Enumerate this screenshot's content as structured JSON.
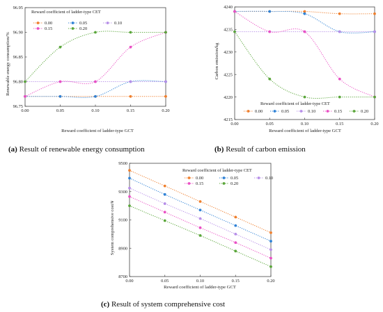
{
  "colors": {
    "0.00": "#ef7f2d",
    "0.05": "#2f82d6",
    "0.10": "#b68ee8",
    "0.15": "#ea4fc4",
    "0.20": "#5aa63a"
  },
  "legend_title": "Reward coefficient of ladder-type CET",
  "captions": [
    {
      "label": "(a)",
      "text": " Result of renewable energy consumption"
    },
    {
      "label": "(b)",
      "text": " Result of carbon emission"
    },
    {
      "label": "(c)",
      "text": " Result of system comprehensive cost"
    }
  ],
  "chart_data": [
    {
      "type": "line",
      "xlabel": "Reward coefficient of ladder-type GCT",
      "ylabel": "Renewable energy consumption/%",
      "x": [
        0.0,
        0.05,
        0.1,
        0.15,
        0.2
      ],
      "x_ticks": [
        "0.00",
        "0.05",
        "0.10",
        "0.15",
        "0.20"
      ],
      "y_ticks": [
        "96.75",
        "96.80",
        "96.85",
        "96.90",
        "96.95"
      ],
      "ylim": [
        96.75,
        96.95
      ],
      "legend_title": "Reward coefficient of ladder-type CET",
      "series": [
        {
          "name": "0.00",
          "values": [
            96.77,
            96.77,
            96.77,
            96.77,
            96.77
          ]
        },
        {
          "name": "0.05",
          "values": [
            96.77,
            96.77,
            96.77,
            96.8,
            96.8
          ]
        },
        {
          "name": "0.10",
          "values": [
            96.8,
            96.8,
            96.8,
            96.8,
            96.8
          ]
        },
        {
          "name": "0.15",
          "values": [
            96.77,
            96.8,
            96.8,
            96.87,
            96.9
          ]
        },
        {
          "name": "0.20",
          "values": [
            96.8,
            96.87,
            96.9,
            96.9,
            96.9
          ]
        }
      ]
    },
    {
      "type": "line",
      "xlabel": "Reward coefficient of ladder-type GCT",
      "ylabel": "Carbon emission/kg",
      "x": [
        0.0,
        0.05,
        0.1,
        0.15,
        0.2
      ],
      "x_ticks": [
        "0.00",
        "0.05",
        "0.10",
        "0.15",
        "0.20"
      ],
      "y_ticks": [
        "4215",
        "4220",
        "4225",
        "4230",
        "4235",
        "4240"
      ],
      "ylim": [
        4215,
        4240
      ],
      "legend_title": "Reward coefficient of ladder-type CET",
      "series": [
        {
          "name": "0.00",
          "values": [
            4239,
            4239,
            4239,
            4238.5,
            4238.5
          ]
        },
        {
          "name": "0.05",
          "values": [
            4239,
            4239,
            4238.5,
            4234.5,
            4234.5
          ]
        },
        {
          "name": "0.10",
          "values": [
            4234.5,
            4234.5,
            4234.5,
            4234.5,
            4234.5
          ]
        },
        {
          "name": "0.15",
          "values": [
            4239,
            4234.5,
            4234.5,
            4224,
            4220
          ]
        },
        {
          "name": "0.20",
          "values": [
            4234.5,
            4224,
            4220,
            4220,
            4220
          ]
        }
      ]
    },
    {
      "type": "line",
      "xlabel": "Reward coefficient of ladder-type GCT",
      "ylabel": "System comprehensive cost/¥",
      "x": [
        0.0,
        0.05,
        0.1,
        0.15,
        0.2
      ],
      "x_ticks": [
        "0.00",
        "0.05",
        "0.10",
        "0.15",
        "0.20"
      ],
      "y_ticks": [
        "8700",
        "8900",
        "9100",
        "9300",
        "9500"
      ],
      "ylim": [
        8700,
        9500
      ],
      "legend_title": "Reward coefficient of ladder-type CET",
      "series": [
        {
          "name": "0.00",
          "values": [
            9450,
            9340,
            9230,
            9120,
            9010
          ]
        },
        {
          "name": "0.05",
          "values": [
            9395,
            9280,
            9170,
            9060,
            8950
          ]
        },
        {
          "name": "0.10",
          "values": [
            9325,
            9215,
            9110,
            9000,
            8890
          ]
        },
        {
          "name": "0.15",
          "values": [
            9265,
            9155,
            9045,
            8940,
            8830
          ]
        },
        {
          "name": "0.20",
          "values": [
            9200,
            9095,
            8990,
            8880,
            8770
          ]
        }
      ]
    }
  ]
}
